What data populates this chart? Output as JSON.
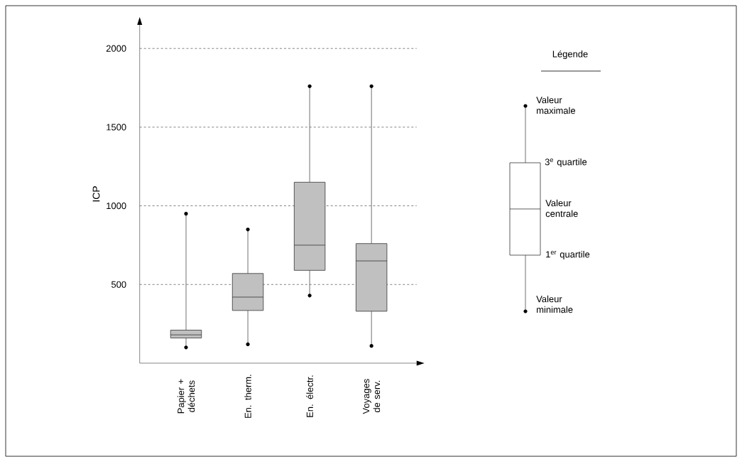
{
  "chart_data": {
    "type": "box",
    "ylabel": "ICP",
    "categories": [
      "Papier + déchets",
      "En. therm.",
      "En. électr.",
      "Voyages de serv."
    ],
    "boxes": [
      {
        "low": 100,
        "q1": 160,
        "median": 180,
        "q3": 210,
        "high": 950
      },
      {
        "low": 120,
        "q1": 335,
        "median": 420,
        "q3": 570,
        "high": 850
      },
      {
        "low": 430,
        "q1": 590,
        "median": 750,
        "q3": 1150,
        "high": 1760
      },
      {
        "low": 110,
        "q1": 330,
        "median": 650,
        "q3": 760,
        "high": 1760
      }
    ],
    "ylim": [
      0,
      2150
    ],
    "yticks": [
      500,
      1000,
      1500,
      2000
    ],
    "grid": "y",
    "color": "#c0c0c0",
    "annotations": [
      "Légende",
      "Valeur maximale",
      "3$^{e}$ quartile",
      "Valeur centrale",
      "1$^{er}$ quartile",
      "Valeur minimale"
    ]
  }
}
